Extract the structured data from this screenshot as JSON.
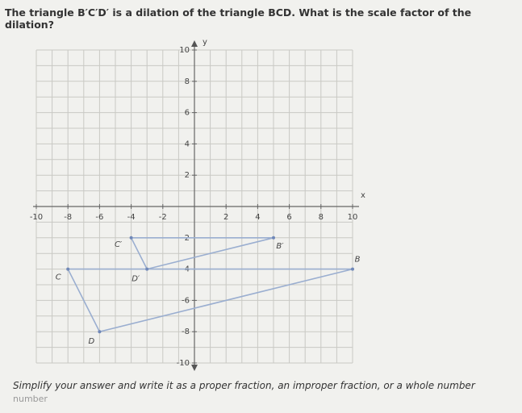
{
  "question": "The triangle B′C′D′ is a dilation of the triangle BCD. What is the scale factor of the dilation?",
  "graph": {
    "xlim": [
      -10,
      10
    ],
    "ylim": [
      -10,
      10
    ],
    "xticks": [
      -10,
      -8,
      -6,
      -4,
      -2,
      2,
      4,
      6,
      8,
      10
    ],
    "yticks": [
      -10,
      -8,
      -6,
      -4,
      -2,
      2,
      4,
      6,
      8,
      10
    ],
    "x_label": "x",
    "y_label": "y",
    "triangles": [
      {
        "points": [
          {
            "label": "B",
            "x": 10,
            "y": -4
          },
          {
            "label": "C",
            "x": -8,
            "y": -4
          },
          {
            "label": "D",
            "x": -6,
            "y": -8
          }
        ]
      },
      {
        "points": [
          {
            "label": "B′",
            "x": 5,
            "y": -2
          },
          {
            "label": "C′",
            "x": -4,
            "y": -2
          },
          {
            "label": "D′",
            "x": -3,
            "y": -4
          }
        ]
      }
    ]
  },
  "instruction": "Simplify your answer and write it as a proper fraction, an improper fraction, or a whole number",
  "answer_placeholder": "number"
}
